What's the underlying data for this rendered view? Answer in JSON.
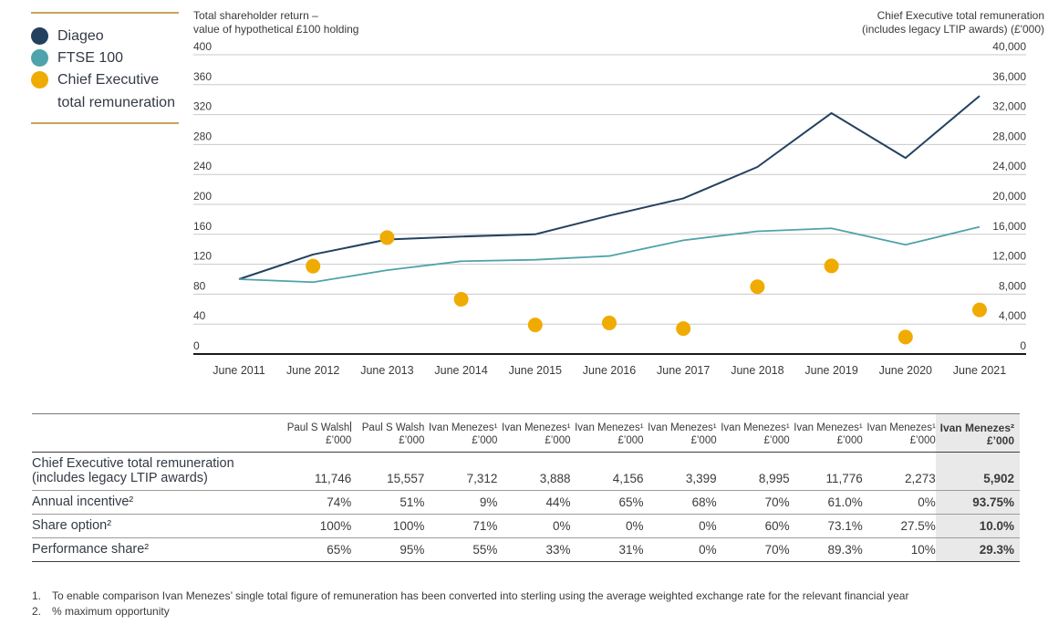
{
  "legend": {
    "items": [
      {
        "label": "Diageo",
        "color": "#23415f"
      },
      {
        "label": "FTSE 100",
        "color": "#4fa3aa"
      },
      {
        "label": "Chief Executive total remuneration",
        "line1": "Chief Executive",
        "line2": "total remuneration",
        "color": "#f0ab00"
      }
    ]
  },
  "chart_data": {
    "type": "line",
    "title_left_line1": "Total shareholder return –",
    "title_left_line2": "value of hypothetical £100 holding",
    "title_right_line1": "Chief Executive total remuneration",
    "title_right_line2": "(includes legacy LTIP awards) (£'000)",
    "x_labels": [
      "June 2011",
      "June 2012",
      "June 2013",
      "June 2014",
      "June 2015",
      "June 2016",
      "June 2017",
      "June 2018",
      "June 2019",
      "June 2020",
      "June 2021"
    ],
    "left_axis": {
      "label": "Total shareholder return – value of hypothetical £100 holding",
      "min": 0,
      "max": 400,
      "step": 40
    },
    "right_axis": {
      "label": "Chief Executive total remuneration (includes legacy LTIP awards) (£'000)",
      "min": 0,
      "max": 40000,
      "step": 4000
    },
    "grid": true,
    "legend_position": "top-left",
    "series": [
      {
        "name": "Diageo",
        "kind": "line",
        "axis": "left",
        "color": "#23415f",
        "width": 2,
        "values": [
          100,
          133,
          153,
          157,
          160,
          185,
          208,
          250,
          322,
          262,
          345
        ]
      },
      {
        "name": "FTSE 100",
        "kind": "line",
        "axis": "left",
        "color": "#4fa3aa",
        "width": 1.8,
        "values": [
          100,
          96,
          112,
          124,
          126,
          131,
          152,
          164,
          168,
          146,
          170
        ]
      },
      {
        "name": "Chief Executive total remuneration",
        "kind": "scatter",
        "axis": "right",
        "color": "#f0ab00",
        "x_start_index": 1,
        "values": [
          11746,
          15557,
          7312,
          3888,
          4156,
          3399,
          8995,
          11776,
          2273,
          5902
        ]
      }
    ]
  },
  "table": {
    "columns": [
      {
        "name": "Paul S Walsh",
        "unit": "£’000",
        "caret": true
      },
      {
        "name": "Paul S Walsh",
        "unit": "£’000"
      },
      {
        "name": "Ivan Menezes¹",
        "unit": "£’000"
      },
      {
        "name": "Ivan Menezes¹",
        "unit": "£’000"
      },
      {
        "name": "Ivan Menezes¹",
        "unit": "£’000"
      },
      {
        "name": "Ivan Menezes¹",
        "unit": "£’000"
      },
      {
        "name": "Ivan Menezes¹",
        "unit": "£’000"
      },
      {
        "name": "Ivan Menezes¹",
        "unit": "£’000"
      },
      {
        "name": "Ivan Menezes¹",
        "unit": "£’000"
      },
      {
        "name": "Ivan Menezes²",
        "unit": "£’000",
        "highlight": true
      }
    ],
    "rows": [
      {
        "label_lines": [
          "Chief Executive total remuneration",
          "(includes legacy LTIP awards)"
        ],
        "values": [
          "11,746",
          "15,557",
          "7,312",
          "3,888",
          "4,156",
          "3,399",
          "8,995",
          "11,776",
          "2,273",
          "5,902"
        ]
      },
      {
        "label_lines": [
          "Annual incentive²"
        ],
        "values": [
          "74%",
          "51%",
          "9%",
          "44%",
          "65%",
          "68%",
          "70%",
          "61.0%",
          "0%",
          "93.75%"
        ]
      },
      {
        "label_lines": [
          "Share option²"
        ],
        "values": [
          "100%",
          "100%",
          "71%",
          "0%",
          "0%",
          "0%",
          "60%",
          "73.1%",
          "27.5%",
          "10.0%"
        ]
      },
      {
        "label_lines": [
          "Performance share²"
        ],
        "values": [
          "65%",
          "95%",
          "55%",
          "33%",
          "31%",
          "0%",
          "70%",
          "89.3%",
          "10%",
          "29.3%"
        ]
      }
    ]
  },
  "footnotes": [
    {
      "num": "1.",
      "text": "To enable comparison Ivan Menezes’ single total figure of remuneration has been converted into sterling using the average weighted exchange rate for the relevant financial year"
    },
    {
      "num": "2.",
      "text": "% maximum opportunity"
    }
  ],
  "colors": {
    "diageo": "#23415f",
    "ftse": "#4fa3aa",
    "remuneration_dot": "#f0ab00",
    "legend_rule": "#c8a45c",
    "gridline": "#c9c9c9",
    "zero_axis": "#1a1a1a",
    "table_highlight": "#e9e9e9"
  }
}
